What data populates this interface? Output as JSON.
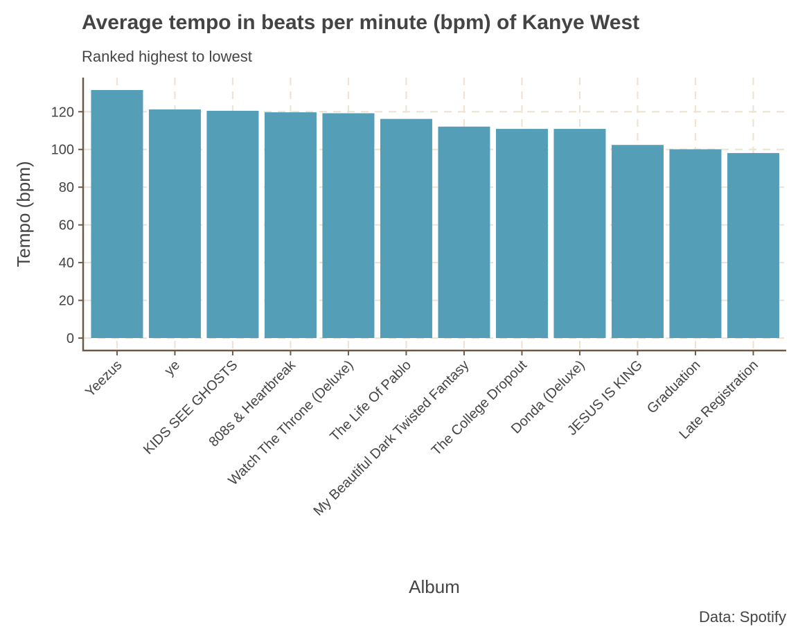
{
  "colors": {
    "bar": "#549eb8",
    "axis": "#6b5a45",
    "grid": "#eee3d5",
    "text": "#444444",
    "background": "#ffffff"
  },
  "chart_data": {
    "type": "bar",
    "title": "Average tempo in beats per minute (bpm) of Kanye West",
    "subtitle": "Ranked highest to lowest",
    "xlabel": "Album",
    "ylabel": "Tempo (bpm)",
    "caption": "Data: Spotify",
    "categories": [
      "Yeezus",
      "ye",
      "KIDS SEE GHOSTS",
      "808s & Heartbreak",
      "Watch The Throne (Deluxe)",
      "The Life Of Pablo",
      "My Beautiful Dark Twisted Fantasy",
      "The College Dropout",
      "Donda (Deluxe)",
      "JESUS IS KING",
      "Graduation",
      "Late Registration"
    ],
    "values": [
      131.5,
      121.2,
      120.5,
      119.7,
      119.2,
      116.2,
      112.1,
      110.9,
      110.9,
      102.4,
      100.1,
      98.1
    ],
    "yticks": [
      0,
      20,
      40,
      60,
      80,
      100,
      120
    ],
    "ylim": [
      -6.6,
      138.1
    ],
    "grid": true,
    "legend": "none"
  }
}
